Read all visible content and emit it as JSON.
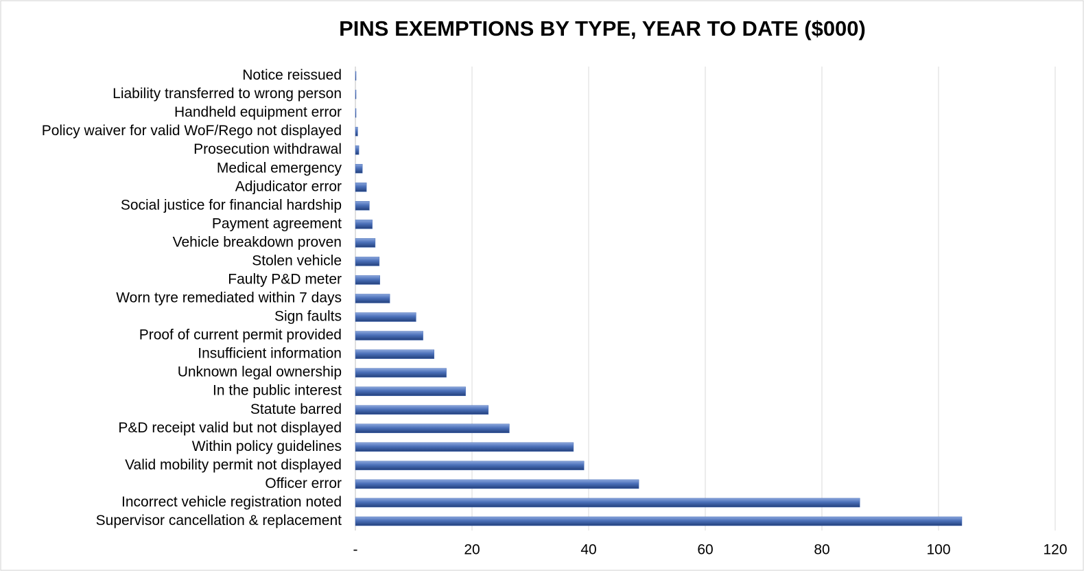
{
  "chart_data": {
    "type": "barh",
    "title": "PINS EXEMPTIONS BY TYPE, YEAR TO DATE ($000)",
    "categories": [
      "Notice reissued",
      "Liability transferred to wrong person",
      "Handheld equipment error",
      "Policy waiver for valid WoF/Rego not displayed",
      "Prosecution withdrawal",
      "Medical emergency",
      "Adjudicator error",
      "Social justice for financial hardship",
      "Payment agreement",
      "Vehicle breakdown proven",
      "Stolen vehicle",
      "Faulty P&D meter",
      "Worn tyre remediated within 7 days",
      "Sign faults",
      "Proof of current permit provided",
      "Insufficient information",
      "Unknown legal ownership",
      "In the public interest",
      "Statute barred",
      "P&D receipt valid but not displayed",
      "Within policy guidelines",
      "Valid mobility permit not displayed",
      "Officer error",
      "Incorrect vehicle registration noted",
      "Supervisor cancellation & replacement"
    ],
    "values": [
      0.1,
      0.1,
      0.1,
      0.4,
      0.6,
      1.2,
      1.9,
      2.4,
      2.9,
      3.4,
      4.1,
      4.2,
      5.9,
      10.4,
      11.6,
      13.5,
      15.6,
      18.9,
      22.8,
      26.4,
      37.4,
      39.2,
      48.6,
      86.5,
      104.0
    ],
    "color": "#4a6fb8",
    "xlim": [
      0,
      120
    ],
    "xticks": [
      {
        "value": 0,
        "label": "-"
      },
      20,
      40,
      60,
      80,
      100,
      120
    ],
    "grid": true
  }
}
